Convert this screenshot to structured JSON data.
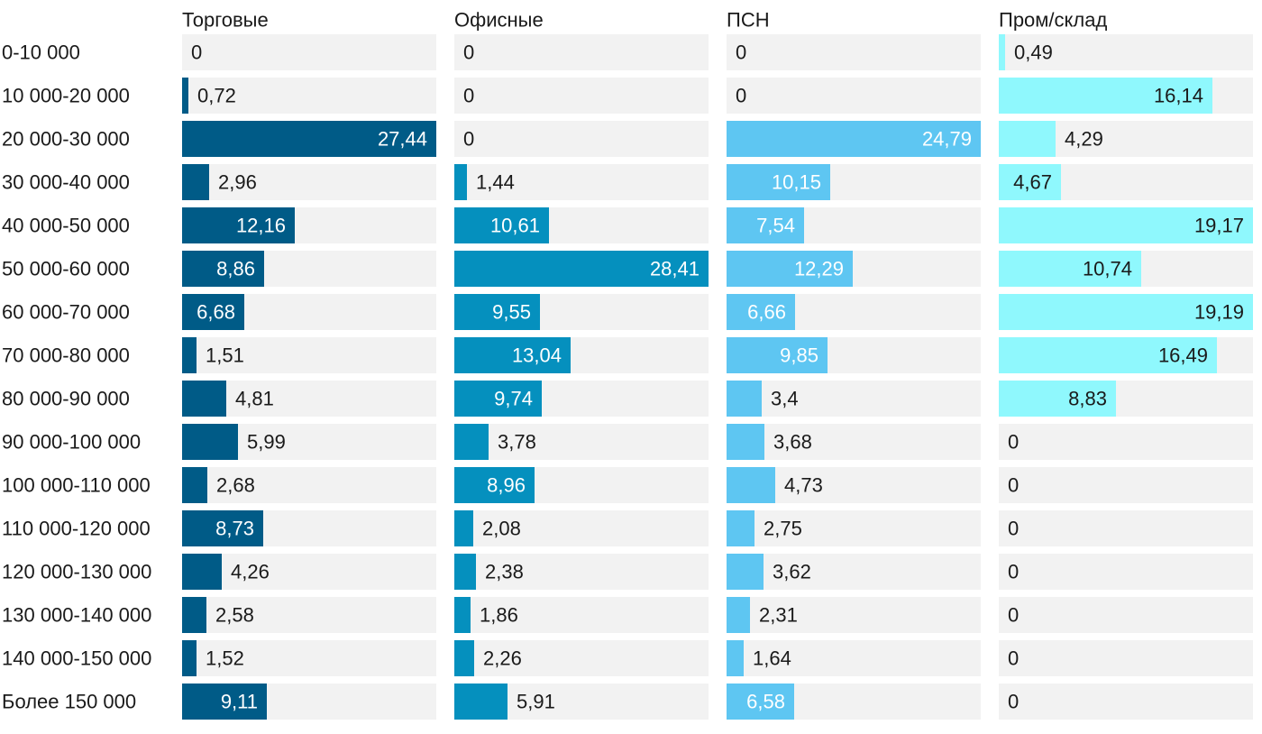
{
  "chart_data": {
    "type": "bar",
    "orientation": "horizontal",
    "layout": "small-multiples",
    "categories": [
      "0-10 000",
      "10 000-20 000",
      "20 000-30 000",
      "30 000-40 000",
      "40 000-50 000",
      "50 000-60 000",
      "60 000-70 000",
      "70 000-80 000",
      "80 000-90 000",
      "90 000-100 000",
      "100 000-110 000",
      "110 000-120 000",
      "120 000-130 000",
      "130 000-140 000",
      "140 000-150 000",
      "Более 150 000"
    ],
    "series": [
      {
        "name": "Торговые",
        "color": "#005b87",
        "values": [
          0,
          0.72,
          27.44,
          2.96,
          12.16,
          8.86,
          6.68,
          1.51,
          4.81,
          5.99,
          2.68,
          8.73,
          4.26,
          2.58,
          1.52,
          9.11
        ],
        "labels": [
          "0",
          "0,72",
          "27,44",
          "2,96",
          "12,16",
          "8,86",
          "6,68",
          "1,51",
          "4,81",
          "5,99",
          "2,68",
          "8,73",
          "4,26",
          "2,58",
          "1,52",
          "9,11"
        ],
        "xlim": [
          0,
          27.44
        ]
      },
      {
        "name": "Офисные",
        "color": "#0590be",
        "values": [
          0,
          0,
          0,
          1.44,
          10.61,
          28.41,
          9.55,
          13.04,
          9.74,
          3.78,
          8.96,
          2.08,
          2.38,
          1.86,
          2.26,
          5.91
        ],
        "labels": [
          "0",
          "0",
          "0",
          "1,44",
          "10,61",
          "28,41",
          "9,55",
          "13,04",
          "9,74",
          "3,78",
          "8,96",
          "2,08",
          "2,38",
          "1,86",
          "2,26",
          "5,91"
        ],
        "xlim": [
          0,
          28.41
        ]
      },
      {
        "name": "ПСН",
        "color": "#5ec6f2",
        "values": [
          0,
          0,
          24.79,
          10.15,
          7.54,
          12.29,
          6.66,
          9.85,
          3.4,
          3.68,
          4.73,
          2.75,
          3.62,
          2.31,
          1.64,
          6.58
        ],
        "labels": [
          "0",
          "0",
          "24,79",
          "10,15",
          "7,54",
          "12,29",
          "6,66",
          "9,85",
          "3,4",
          "3,68",
          "4,73",
          "2,75",
          "3,62",
          "2,31",
          "1,64",
          "6,58"
        ],
        "xlim": [
          0,
          24.79
        ]
      },
      {
        "name": "Пром/склад",
        "color": "#8ff8fd",
        "values": [
          0.49,
          16.14,
          4.29,
          4.67,
          19.17,
          10.74,
          19.19,
          16.49,
          8.83,
          0,
          0,
          0,
          0,
          0,
          0,
          0
        ],
        "labels": [
          "0,49",
          "16,14",
          "4,29",
          "4,67",
          "19,17",
          "10,74",
          "19,19",
          "16,49",
          "8,83",
          "0",
          "0",
          "0",
          "0",
          "0",
          "0",
          "0"
        ],
        "xlim": [
          0,
          19.19
        ]
      }
    ],
    "colors": {
      "track": "#f2f2f2",
      "label_dark": "#1a1a1a",
      "label_light": "#ffffff"
    },
    "grid": false,
    "legend": "none"
  }
}
